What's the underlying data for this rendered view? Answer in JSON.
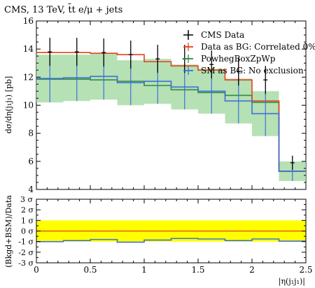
{
  "chart_data": [
    {
      "type": "line",
      "title": "CMS, 13 TeV, t̄t e/μ + jets",
      "ylabel": "dσ/dη(j₁j₁) [pb]",
      "xlabel": "|η(j₁j₁)|",
      "xlim": [
        0,
        2.5
      ],
      "ylim": [
        4,
        16
      ],
      "x_ticks": [
        "0",
        "0.5",
        "1",
        "1.5",
        "2",
        "2.5"
      ],
      "y_ticks": [
        "4",
        "6",
        "8",
        "10",
        "12",
        "14",
        "16"
      ],
      "bin_edges": [
        0,
        0.25,
        0.5,
        0.75,
        1.0,
        1.25,
        1.5,
        1.75,
        2.0,
        2.25,
        2.5
      ],
      "legend_position": "top-right",
      "series": [
        {
          "name": "CMS Data",
          "color": "#000000",
          "style": "points",
          "values": [
            13.8,
            13.8,
            13.75,
            13.6,
            13.3,
            13.3,
            12.9,
            12.4,
            11.8,
            5.9
          ],
          "err_low": [
            1.0,
            1.0,
            1.0,
            1.0,
            1.0,
            1.0,
            1.0,
            1.0,
            1.0,
            0.5
          ],
          "err_high": [
            1.0,
            1.0,
            1.0,
            1.0,
            1.0,
            1.0,
            1.0,
            1.0,
            1.0,
            0.5
          ]
        },
        {
          "name": "Data as BG: Correlated 0%",
          "color": "#e8401c",
          "style": "step",
          "values": [
            13.75,
            13.75,
            13.7,
            13.6,
            13.1,
            12.8,
            12.5,
            11.8,
            10.3,
            5.3
          ]
        },
        {
          "name": "PowhegBoxZpWp",
          "color": "#2e8b3e",
          "style": "step",
          "values": [
            11.85,
            11.85,
            11.8,
            11.7,
            11.4,
            11.1,
            10.9,
            10.7,
            10.2,
            5.3
          ]
        },
        {
          "name": "SM as BG: No exclusion",
          "color": "#3e6fd8",
          "style": "step",
          "band_color": "#a8dca8",
          "values": [
            11.9,
            11.95,
            12.05,
            11.6,
            11.7,
            11.3,
            11.0,
            10.3,
            9.4,
            5.3
          ],
          "band_low": [
            10.2,
            10.3,
            10.4,
            10.0,
            10.1,
            9.7,
            9.4,
            8.7,
            7.8,
            4.6
          ],
          "band_high": [
            13.6,
            13.6,
            13.7,
            13.2,
            13.3,
            12.9,
            12.6,
            11.9,
            11.0,
            6.0
          ],
          "err_low": [
            1.7,
            1.65,
            1.65,
            1.6,
            1.6,
            1.6,
            1.6,
            1.6,
            1.6,
            0.7
          ],
          "err_high": [
            1.7,
            1.65,
            1.65,
            1.6,
            1.6,
            1.6,
            1.6,
            1.6,
            1.6,
            0.7
          ]
        }
      ]
    },
    {
      "type": "line",
      "title": "",
      "ylabel": "(Bkgd+BSM)/Data",
      "xlabel": "|η(j₁j₁)|",
      "xlim": [
        0,
        2.5
      ],
      "ylim": [
        -3,
        3
      ],
      "x_ticks": [
        "0",
        "0.5",
        "1",
        "1.5",
        "2",
        "2.5"
      ],
      "y_ticks": [
        "3 σ",
        "2 σ",
        "1 σ",
        "0 σ",
        "-1 σ",
        "-2 σ",
        "-3 σ"
      ],
      "top_label": "3 σ",
      "band": {
        "low": -1,
        "high": 1,
        "color": "#ffff00"
      },
      "series": [
        {
          "name": "SM as BG: No exclusion",
          "color": "#3e6fd8",
          "style": "step",
          "values": [
            -1.0,
            -0.9,
            -0.8,
            -1.05,
            -0.85,
            -0.7,
            -0.75,
            -0.9,
            -0.75,
            -0.95
          ]
        },
        {
          "name": "Data as BG: Correlated 0%",
          "color": "#e8401c",
          "style": "line",
          "values": [
            0,
            0,
            0,
            0,
            0,
            0,
            0,
            0,
            0,
            0
          ]
        }
      ]
    }
  ]
}
